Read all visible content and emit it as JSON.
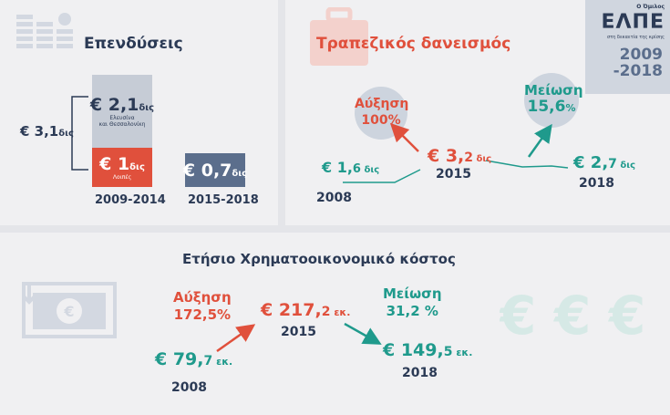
{
  "logo": {
    "prefix": "Ο Όμιλος",
    "name": "ΕΛΠΕ",
    "tagline": "στη δεκαετία της κρίσης",
    "years_line1": "2009",
    "years_line2": "-2018"
  },
  "investments": {
    "title": "Επενδύσεις",
    "total": {
      "value": "€ 3,1",
      "unit": "δις"
    },
    "bar1": {
      "top": {
        "value": "€ 2,1",
        "unit": "δις",
        "note_line1": "Ελευσίνα",
        "note_line2": "και Θεσσαλονίκη"
      },
      "bottom": {
        "value": "€ 1",
        "unit": "δις",
        "note": "Λοιπές"
      },
      "label": "2009-2014"
    },
    "bar2": {
      "value": "€ 0,7",
      "unit": "δις",
      "label": "2015-2018"
    }
  },
  "lending": {
    "title": "Τραπεζικός δανεισμός",
    "points": [
      {
        "value": "€ 1,",
        "decimal": "6",
        "unit": "δις",
        "year": "2008"
      },
      {
        "value": "€ 3,",
        "decimal": "2",
        "unit": "δις",
        "year": "2015"
      },
      {
        "value": "€ 2,",
        "decimal": "7",
        "unit": "δις",
        "year": "2018"
      }
    ],
    "increase": {
      "label": "Αύξηση",
      "value": "100%"
    },
    "decrease": {
      "label": "Μείωση",
      "value": "15,",
      "decimal": "6",
      "pct": "%"
    }
  },
  "cost": {
    "title": "Ετήσιο Χρηματοοικονομικό κόστος",
    "increase": {
      "label": "Αύξηση",
      "value": "172,5%"
    },
    "decrease": {
      "label": "Μείωση",
      "value": "31,2 %"
    },
    "points": [
      {
        "value": "€ 79,",
        "decimal": "7",
        "unit": "εκ.",
        "year": "2008"
      },
      {
        "value": "€ 217,",
        "decimal": "2",
        "unit": "εκ.",
        "year": "2015"
      },
      {
        "value": "€ 149,",
        "decimal": "5",
        "unit": "εκ.",
        "year": "2018"
      }
    ]
  },
  "colors": {
    "navy": "#2b3a55",
    "red": "#e0503c",
    "teal": "#1f9a8c",
    "bar_blue": "#5b6e8c",
    "bar_grey": "#c6ccd6"
  }
}
